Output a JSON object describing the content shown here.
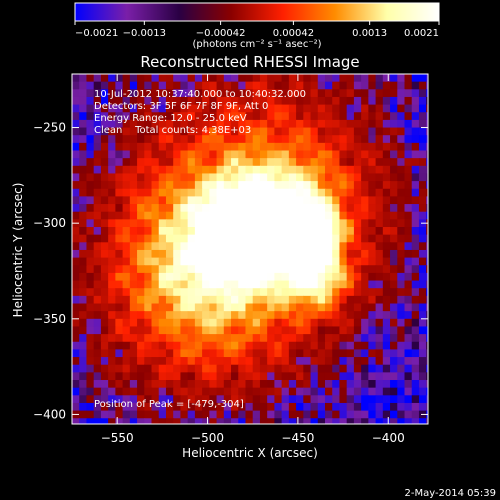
{
  "chart_data": {
    "type": "heatmap",
    "title": "Reconstructed RHESSI Image",
    "xlabel": "Heliocentric X (arcsec)",
    "ylabel": "Heliocentric Y (arcsec)",
    "xlim": [
      -575,
      -378
    ],
    "ylim": [
      -405,
      -222
    ],
    "x_ticks": [
      -550,
      -500,
      -450,
      -400
    ],
    "x_tick_labels": [
      "−550",
      "−500",
      "−450",
      "−400"
    ],
    "y_ticks": [
      -250,
      -300,
      -350,
      -400
    ],
    "y_tick_labels": [
      "−250",
      "−300",
      "−350",
      "−400"
    ],
    "colorbar": {
      "min": -0.0021,
      "max": 0.0021,
      "tick_labels": [
        "−0.0021",
        "−0.0013",
        "−0.00042",
        "0.00042",
        "0.0013",
        "0.0021"
      ],
      "tick_values": [
        -0.0021,
        -0.0013,
        -0.00042,
        0.00042,
        0.0013,
        0.0021
      ],
      "unit_label": "(photons cm⁻² s⁻¹ asec⁻²)",
      "colormap": [
        "#0000ff",
        "#7a1fa8",
        "#2a0044",
        "#8a0000",
        "#ff2000",
        "#ff8c00",
        "#ffffaa",
        "#ffffff"
      ]
    },
    "annotations": {
      "time_range": "10-Jul-2012 10:37:40.000 to 10:40:32.000",
      "detectors": "Detectors: 3F 5F 6F 7F 8F 9F, Att 0",
      "energy_range": "Energy Range: 12.0 - 25.0 keV",
      "method_counts": "Clean    Total counts: 4.38E+03",
      "peak_position": "Position of Peak = [-479,-304]"
    },
    "sources": [
      {
        "x": -479,
        "y": -304,
        "amp": 1.0,
        "sigma": 13
      },
      {
        "x": -443,
        "y": -304,
        "amp": 0.72,
        "sigma": 10
      },
      {
        "x": -440,
        "y": -328,
        "amp": 0.55,
        "sigma": 11
      },
      {
        "x": -462,
        "y": -298,
        "amp": 0.6,
        "sigma": 22
      },
      {
        "x": -500,
        "y": -318,
        "amp": 0.45,
        "sigma": 28
      },
      {
        "x": -470,
        "y": -290,
        "amp": 0.35,
        "sigma": 50
      },
      {
        "x": -510,
        "y": -340,
        "amp": 0.22,
        "sigma": 40
      }
    ],
    "grid": false
  },
  "footer": {
    "timestamp": "2-May-2014 05:39"
  }
}
